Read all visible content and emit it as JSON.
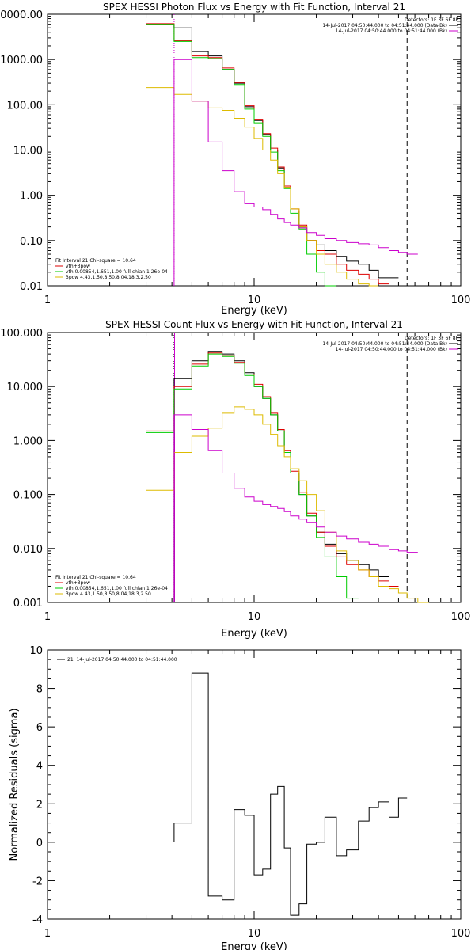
{
  "chart_data": [
    {
      "type": "line",
      "title": "SPEX HESSI Photon Flux vs Energy with Fit Function, Interval 21",
      "xlabel": "Energy (keV)",
      "ylabel": "",
      "x_scale": "log",
      "y_scale": "log",
      "xlim": [
        1,
        100
      ],
      "ylim": [
        0.01,
        10000
      ],
      "x_ticks": [
        "1",
        "10",
        "100"
      ],
      "y_ticks": [
        "0000.00",
        "1000.00",
        "100.00",
        "10.00",
        "1.00",
        "0.10",
        "0.01"
      ],
      "x_tick_values": [
        1,
        10,
        100
      ],
      "y_tick_values": [
        10000,
        1000,
        100,
        10,
        1,
        0.1,
        0.01
      ],
      "vlines": [
        {
          "x": 4.1,
          "style": "dotted",
          "color": "#cc00cc"
        },
        {
          "x": 55,
          "style": "dashed",
          "color": "#000000"
        }
      ],
      "legend_tr": {
        "header": "Detectors: 1F 3F 6F 8F",
        "entries": [
          {
            "text": "14-Jul-2017 04:50:44.000 to 04:51:44.000 (Data-Bk)",
            "color": "#000000"
          },
          {
            "text": "14-Jul-2017 04:50:44.000 to 04:51:44.000 (Bk)",
            "color": "#cc00cc"
          }
        ]
      },
      "legend_bl": {
        "header": "Fit Interval 21   Chi-square = 10.64",
        "entries": [
          {
            "text": "vth+3pow",
            "color": "#dd0000"
          },
          {
            "text": "vth 0.00854,1.651,1.00  full chian 1.26e-04",
            "color": "#00cc00"
          },
          {
            "text": "3pow 4.43,1.50,8.50,8.04,18.3,2.50",
            "color": "#ddbb00"
          }
        ]
      },
      "bin_edges": [
        3.0,
        4.1,
        5.0,
        6.0,
        7.0,
        8.0,
        9.0,
        10.0,
        11.0,
        12.0,
        13.0,
        14.0,
        15.0,
        16.5,
        18.0,
        20.0,
        22.0,
        25.0,
        28.0,
        32.0,
        36.0,
        40.0,
        45.0,
        50.0,
        55.0,
        62.0
      ],
      "series": [
        {
          "color": "#000000",
          "values": [
            6000,
            5000,
            1500,
            1200,
            600,
            300,
            90,
            45,
            22,
            10,
            4,
            1.5,
            0.45,
            0.2,
            0.1,
            0.08,
            0.06,
            0.045,
            0.035,
            0.03,
            0.022,
            0.015,
            0.015,
            null,
            null
          ]
        },
        {
          "color": "#dd0000",
          "values": [
            6200,
            2600,
            1200,
            1100,
            650,
            310,
            95,
            48,
            23,
            11,
            4.2,
            1.6,
            0.5,
            0.22,
            0.1,
            0.06,
            0.05,
            0.03,
            0.022,
            0.018,
            0.014,
            0.011,
            null,
            null,
            null
          ]
        },
        {
          "color": "#00cc00",
          "values": [
            6000,
            2500,
            1100,
            1050,
            600,
            280,
            80,
            40,
            20,
            9,
            3.5,
            1.4,
            0.4,
            0.18,
            0.05,
            0.02,
            0.01,
            null,
            null,
            null,
            null,
            null,
            null,
            null,
            null
          ]
        },
        {
          "color": "#ddbb00",
          "values": [
            240,
            170,
            120,
            85,
            75,
            50,
            32,
            18,
            10,
            6,
            3,
            1.5,
            0.5,
            0.2,
            0.1,
            0.05,
            0.03,
            0.02,
            0.014,
            0.011,
            0.01,
            null,
            null,
            null,
            null
          ]
        },
        {
          "color": "#cc00cc",
          "values": [
            null,
            1000,
            120,
            15,
            3.5,
            1.2,
            0.65,
            0.55,
            0.48,
            0.38,
            0.3,
            0.25,
            0.22,
            0.19,
            0.15,
            0.13,
            0.11,
            0.1,
            0.09,
            0.085,
            0.08,
            0.07,
            0.06,
            0.055,
            0.05
          ]
        }
      ]
    },
    {
      "type": "line",
      "title": "SPEX HESSI Count Flux vs Energy with Fit Function, Interval 21",
      "xlabel": "Energy (keV)",
      "ylabel": "",
      "x_scale": "log",
      "y_scale": "log",
      "xlim": [
        1,
        100
      ],
      "ylim": [
        0.001,
        100
      ],
      "x_ticks": [
        "1",
        "10",
        "100"
      ],
      "y_ticks": [
        "100.000",
        "10.000",
        "1.000",
        "0.100",
        "0.010",
        "0.001"
      ],
      "x_tick_values": [
        1,
        10,
        100
      ],
      "y_tick_values": [
        100,
        10,
        1,
        0.1,
        0.01,
        0.001
      ],
      "vlines": [
        {
          "x": 4.1,
          "style": "dotted",
          "color": "#000000"
        },
        {
          "x": 4.12,
          "style": "solid",
          "color": "#cc00cc"
        },
        {
          "x": 55,
          "style": "dashed",
          "color": "#000000"
        }
      ],
      "legend_tr": {
        "header": "Detectors: 1F 3F 6F 8F",
        "entries": [
          {
            "text": "14-Jul-2017 04:50:44.000 to 04:51:44.000 (Data-Bk)",
            "color": "#000000"
          },
          {
            "text": "14-Jul-2017 04:50:44.000 to 04:51:44.000 (Bk)",
            "color": "#cc00cc"
          }
        ]
      },
      "legend_bl": {
        "header": "Fit Interval 21   Chi-square = 10.64",
        "entries": [
          {
            "text": "vth+3pow",
            "color": "#dd0000"
          },
          {
            "text": "vth 0.00854,1.651,1.00  full chian 1.26e-04",
            "color": "#00cc00"
          },
          {
            "text": "3pow 4.43,1.50,8.50,8.04,18.3,2.50",
            "color": "#ddbb00"
          }
        ]
      },
      "bin_edges": [
        3.0,
        4.1,
        5.0,
        6.0,
        7.0,
        8.0,
        9.0,
        10.0,
        11.0,
        12.0,
        13.0,
        14.0,
        15.0,
        16.5,
        18.0,
        20.0,
        22.0,
        25.0,
        28.0,
        32.0,
        36.0,
        40.0,
        45.0,
        50.0,
        55.0,
        62.0,
        70.0
      ],
      "series": [
        {
          "color": "#000000",
          "values": [
            null,
            14,
            30,
            45,
            40,
            30,
            18,
            10,
            6,
            3,
            1.5,
            0.6,
            0.25,
            0.1,
            0.04,
            0.02,
            0.012,
            0.008,
            0.006,
            0.005,
            0.004,
            0.003,
            0.002,
            null,
            null,
            null
          ]
        },
        {
          "color": "#dd0000",
          "values": [
            1.5,
            10,
            26,
            42,
            38,
            28,
            17,
            11,
            6.5,
            3.2,
            1.6,
            0.65,
            0.27,
            0.11,
            0.045,
            0.02,
            0.011,
            0.007,
            0.005,
            0.004,
            0.003,
            0.0025,
            0.002,
            null,
            null,
            null
          ]
        },
        {
          "color": "#00cc00",
          "values": [
            1.4,
            9,
            24,
            40,
            36,
            27,
            16,
            10,
            6,
            3,
            1.5,
            0.6,
            0.25,
            0.1,
            0.04,
            0.016,
            0.007,
            0.003,
            0.0012,
            null,
            null,
            null,
            null,
            null,
            null,
            null
          ]
        },
        {
          "color": "#ddbb00",
          "values": [
            0.12,
            0.6,
            1.2,
            1.7,
            3.2,
            4.2,
            3.8,
            3.0,
            2.0,
            1.3,
            0.8,
            0.5,
            0.3,
            0.18,
            0.1,
            0.05,
            0.02,
            0.009,
            0.006,
            0.004,
            0.003,
            0.002,
            0.0018,
            0.0015,
            0.0012,
            0.001
          ]
        },
        {
          "color": "#cc00cc",
          "values": [
            null,
            3,
            1.6,
            0.65,
            0.25,
            0.13,
            0.09,
            0.075,
            0.065,
            0.06,
            0.055,
            0.048,
            0.04,
            0.035,
            0.03,
            0.025,
            0.02,
            0.017,
            0.015,
            0.013,
            0.012,
            0.011,
            0.0095,
            0.009,
            0.0085,
            null
          ]
        }
      ]
    },
    {
      "type": "line",
      "title": "",
      "xlabel": "Energy (keV)",
      "ylabel": "Normalized Residuals (sigma)",
      "x_scale": "log",
      "y_scale": "linear",
      "xlim": [
        1,
        100
      ],
      "ylim": [
        -4,
        10
      ],
      "x_ticks": [
        "1",
        "10",
        "100"
      ],
      "y_ticks": [
        "10",
        "8",
        "6",
        "4",
        "2",
        "0",
        "-2",
        "-4"
      ],
      "x_tick_values": [
        1,
        10,
        100
      ],
      "y_tick_values": [
        10,
        8,
        6,
        4,
        2,
        0,
        -2,
        -4
      ],
      "legend_tl": {
        "entries": [
          {
            "text": "21. 14-Jul-2017 04:50:44.000 to 04:51:44.000",
            "color": "#000000"
          }
        ]
      },
      "bin_edges": [
        4.1,
        5.0,
        6.0,
        7.0,
        8.0,
        9.0,
        10.0,
        11.0,
        12.0,
        13.0,
        14.0,
        15.0,
        16.5,
        18.0,
        20.0,
        22.0,
        25.0,
        28.0,
        32.0,
        36.0,
        40.0,
        45.0,
        50.0,
        55.0
      ],
      "series": [
        {
          "color": "#000000",
          "values": [
            1.0,
            8.8,
            -2.8,
            -3.0,
            1.7,
            1.4,
            -1.7,
            -1.4,
            2.5,
            2.9,
            -0.3,
            -3.8,
            -3.2,
            -0.1,
            0,
            1.3,
            -0.7,
            -0.4,
            1.1,
            1.8,
            2.1,
            1.3,
            2.3
          ]
        }
      ]
    }
  ]
}
